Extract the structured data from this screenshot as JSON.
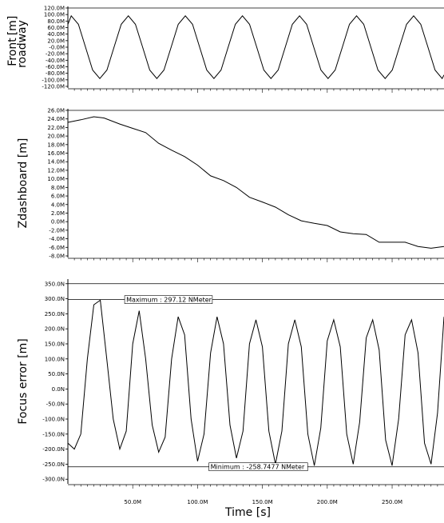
{
  "chart_data": [
    {
      "type": "line",
      "ylabel": [
        "Front",
        "roadway",
        "[m]"
      ],
      "ylim": [
        -120,
        120
      ],
      "xlim": [
        0,
        290
      ],
      "yticks": [
        120,
        100,
        80,
        60,
        40,
        20,
        0,
        -20,
        -40,
        -60,
        -80,
        -100,
        -120
      ],
      "ytick_labels": [
        "120.0M",
        "100.0M",
        "80.0M",
        "60.0M",
        "40.0M",
        "20.0M",
        "-0.0M",
        "-20.0M",
        "-40.0M",
        "-60.0M",
        "-80.0M",
        "-100.0M",
        "-120.0M"
      ],
      "series": [
        {
          "x": [
            0,
            2.6,
            8.1,
            13.6,
            19.1,
            24.6,
            30.1,
            35.6,
            41.1,
            46.6,
            52.1,
            57.6,
            63.1,
            68.6,
            74.1,
            79.6,
            85.1,
            90.6,
            96.1,
            101.6,
            107.1,
            112.6,
            118.1,
            123.6,
            129.1,
            134.6,
            140.1,
            145.6,
            151.1,
            156.6,
            162.1,
            167.6,
            173.1,
            178.6,
            184.1,
            189.6,
            195.1,
            200.6,
            206.1,
            211.6,
            217.1,
            222.6,
            228.1,
            233.6,
            239.1,
            244.6,
            250.1,
            255.6,
            261.1,
            266.6,
            272.1,
            277.6,
            283.1,
            288.6,
            290
          ],
          "values": [
            70,
            96,
            70,
            0,
            -70,
            -96,
            -70,
            0,
            70,
            96,
            70,
            0,
            -70,
            -96,
            -70,
            0,
            70,
            96,
            70,
            0,
            -70,
            -96,
            -70,
            0,
            70,
            96,
            70,
            0,
            -70,
            -96,
            -70,
            0,
            70,
            96,
            70,
            0,
            -70,
            -96,
            -70,
            0,
            70,
            96,
            70,
            0,
            -70,
            -96,
            -70,
            0,
            70,
            96,
            70,
            0,
            -70,
            -96,
            -85
          ]
        }
      ]
    },
    {
      "type": "line",
      "ylabel": "Zdashboard [m]",
      "ylim": [
        -8,
        26
      ],
      "xlim": [
        0,
        290
      ],
      "yticks": [
        26,
        24,
        22,
        20,
        18,
        16,
        14,
        12,
        10,
        8,
        6,
        4,
        2,
        0,
        -2,
        -4,
        -6,
        -8
      ],
      "ytick_labels": [
        "26.0M",
        "24.0M",
        "22.0M",
        "20.0M",
        "18.0M",
        "16.0M",
        "14.0M",
        "12.0M",
        "10.0M",
        "8.0M",
        "6.0M",
        "4.0M",
        "2.0M",
        "0.0M",
        "-2.0M",
        "-4.0M",
        "-6.0M",
        "-8.0M"
      ],
      "series": [
        {
          "x": [
            0,
            10,
            20,
            28,
            40,
            50,
            60,
            70,
            80,
            90,
            100,
            110,
            120,
            130,
            140,
            150,
            160,
            170,
            180,
            190,
            200,
            210,
            220,
            230,
            240,
            250,
            260,
            270,
            280,
            290
          ],
          "values": [
            23.2,
            23.8,
            24.5,
            24.2,
            22.8,
            21.8,
            20.8,
            18.3,
            16.7,
            15.2,
            13.2,
            10.7,
            9.6,
            8.0,
            5.7,
            4.6,
            3.4,
            1.6,
            0.2,
            -0.4,
            -0.9,
            -2.4,
            -2.8,
            -3.0,
            -4.8,
            -4.8,
            -4.8,
            -5.8,
            -6.2,
            -5.8
          ]
        }
      ]
    },
    {
      "type": "line",
      "ylabel": "Focus error [m]",
      "xlabel": "Time [s]",
      "ylim": [
        -310,
        360
      ],
      "xlim": [
        0,
        290
      ],
      "yticks": [
        350,
        300,
        250,
        200,
        150,
        100,
        50,
        0,
        -50,
        -100,
        -150,
        -200,
        -250,
        -300
      ],
      "ytick_labels": [
        "350.0N",
        "300.0N",
        "250.0N",
        "200.0N",
        "150.0N",
        "100.0N",
        "50.0N",
        "0.0N",
        "-50.0N",
        "-100.0N",
        "-150.0N",
        "-200.0N",
        "-250.0N",
        "-300.0N"
      ],
      "xticks": [
        50,
        100,
        150,
        200,
        250
      ],
      "xtick_labels": [
        "50.0M",
        "100.0M",
        "150.0M",
        "200.0M",
        "250.0M"
      ],
      "series": [
        {
          "x": [
            0,
            5,
            10,
            15,
            20,
            25,
            30,
            35,
            40,
            45,
            50,
            55,
            60,
            65,
            70,
            75,
            80,
            85,
            90,
            95,
            100,
            105,
            110,
            115,
            120,
            125,
            130,
            135,
            140,
            145,
            150,
            155,
            160,
            165,
            170,
            175,
            180,
            185,
            190,
            195,
            200,
            205,
            210,
            215,
            220,
            225,
            230,
            235,
            240,
            245,
            250,
            255,
            260,
            265,
            270,
            275,
            280,
            285,
            290
          ],
          "values": [
            -180,
            -200,
            -150,
            100,
            280,
            295,
            100,
            -100,
            -200,
            -140,
            150,
            260,
            100,
            -120,
            -210,
            -160,
            100,
            240,
            180,
            -100,
            -240,
            -150,
            120,
            240,
            150,
            -120,
            -230,
            -140,
            150,
            230,
            140,
            -140,
            -250,
            -140,
            150,
            230,
            140,
            -150,
            -255,
            -130,
            160,
            230,
            140,
            -150,
            -250,
            -110,
            170,
            230,
            130,
            -170,
            -255,
            -100,
            180,
            230,
            120,
            -180,
            -250,
            -80,
            240
          ]
        }
      ],
      "annotations": [
        {
          "label": "Maximum : 297.12 NMeter",
          "value": 297.12,
          "x": 45
        },
        {
          "label": "Minimum : -258.7477 NMeter",
          "value": -258.7477,
          "x": 110
        }
      ]
    }
  ]
}
